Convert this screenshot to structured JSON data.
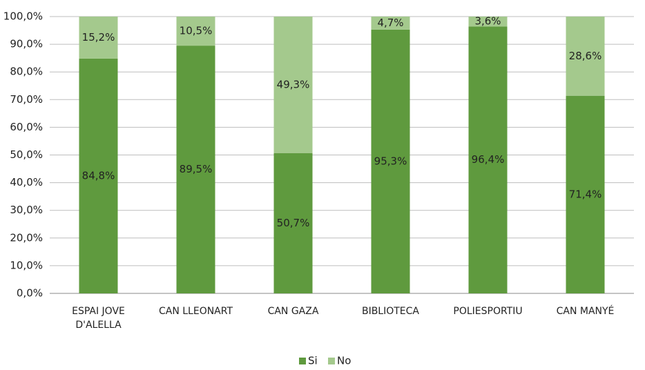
{
  "chart_data": {
    "type": "stacked_bar",
    "categories": [
      "ESPAI JOVE D'ALELLA",
      "CAN LLEONART",
      "CAN GAZA",
      "BIBLIOTECA",
      "POLIESPORTIU",
      "CAN MANYÉ"
    ],
    "series": [
      {
        "name": "Si",
        "color": "#5f9a3e",
        "values": [
          84.8,
          89.5,
          50.7,
          95.3,
          96.4,
          71.4
        ],
        "value_labels": [
          "84,8%",
          "89,5%",
          "50,7%",
          "95,3%",
          "96,4%",
          "71,4%"
        ]
      },
      {
        "name": "No",
        "color": "#a4c98d",
        "values": [
          15.2,
          10.5,
          49.3,
          4.7,
          3.6,
          28.6
        ],
        "value_labels": [
          "15,2%",
          "10,5%",
          "49,3%",
          "4,7%",
          "3,6%",
          "28,6%"
        ]
      }
    ],
    "ylim": [
      0,
      100
    ],
    "yticks": [
      {
        "value": 0,
        "label": "0,0%"
      },
      {
        "value": 10,
        "label": "10,0%"
      },
      {
        "value": 20,
        "label": "20,0%"
      },
      {
        "value": 30,
        "label": "30,0%"
      },
      {
        "value": 40,
        "label": "40,0%"
      },
      {
        "value": 50,
        "label": "50,0%"
      },
      {
        "value": 60,
        "label": "60,0%"
      },
      {
        "value": 70,
        "label": "70,0%"
      },
      {
        "value": 80,
        "label": "80,0%"
      },
      {
        "value": 90,
        "label": "90,0%"
      },
      {
        "value": 100,
        "label": "100,0%"
      }
    ],
    "grid": true,
    "legend": "bottom"
  }
}
